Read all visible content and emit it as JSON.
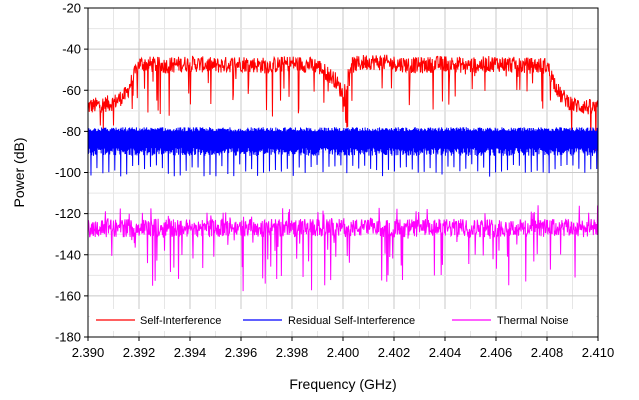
{
  "chart_data": {
    "type": "line",
    "title": "",
    "xlabel": "Frequency (GHz)",
    "ylabel": "Power (dB)",
    "xlim": [
      2.39,
      2.41
    ],
    "ylim": [
      -180,
      -20
    ],
    "x_ticks": [
      "2.390",
      "2.392",
      "2.394",
      "2.396",
      "2.398",
      "2.400",
      "2.402",
      "2.404",
      "2.406",
      "2.408",
      "2.410"
    ],
    "y_ticks": [
      "-20",
      "-40",
      "-60",
      "-80",
      "-100",
      "-120",
      "-140",
      "-160",
      "-180"
    ],
    "grid": true,
    "legend_position": "bottom",
    "series": [
      {
        "name": "Self-Interference",
        "color": "#ff0000",
        "x": [
          2.39,
          2.391,
          2.3915,
          2.392,
          2.393,
          2.394,
          2.395,
          2.396,
          2.397,
          2.398,
          2.399,
          2.3997,
          2.4,
          2.4003,
          2.401,
          2.402,
          2.403,
          2.404,
          2.405,
          2.406,
          2.407,
          2.408,
          2.4085,
          2.409,
          2.41
        ],
        "y": [
          -68,
          -66,
          -62,
          -47,
          -48,
          -47,
          -48,
          -47,
          -48,
          -47,
          -48,
          -55,
          -62,
          -48,
          -46,
          -47,
          -48,
          -47,
          -48,
          -47,
          -48,
          -48,
          -62,
          -67,
          -69
        ]
      },
      {
        "name": "Residual Self-Interference",
        "color": "#0000ff",
        "x": [
          2.39,
          2.392,
          2.394,
          2.396,
          2.398,
          2.4,
          2.402,
          2.404,
          2.406,
          2.408,
          2.41
        ],
        "y": [
          -84,
          -84,
          -84,
          -84,
          -84,
          -84,
          -84,
          -84,
          -84,
          -84,
          -84
        ]
      },
      {
        "name": "Thermal Noise",
        "color": "#ff00ff",
        "x": [
          2.39,
          2.392,
          2.394,
          2.396,
          2.398,
          2.4,
          2.402,
          2.404,
          2.406,
          2.408,
          2.41
        ],
        "y": [
          -127,
          -127,
          -127,
          -127,
          -127,
          -127,
          -127,
          -127,
          -127,
          -127,
          -127
        ]
      }
    ]
  }
}
